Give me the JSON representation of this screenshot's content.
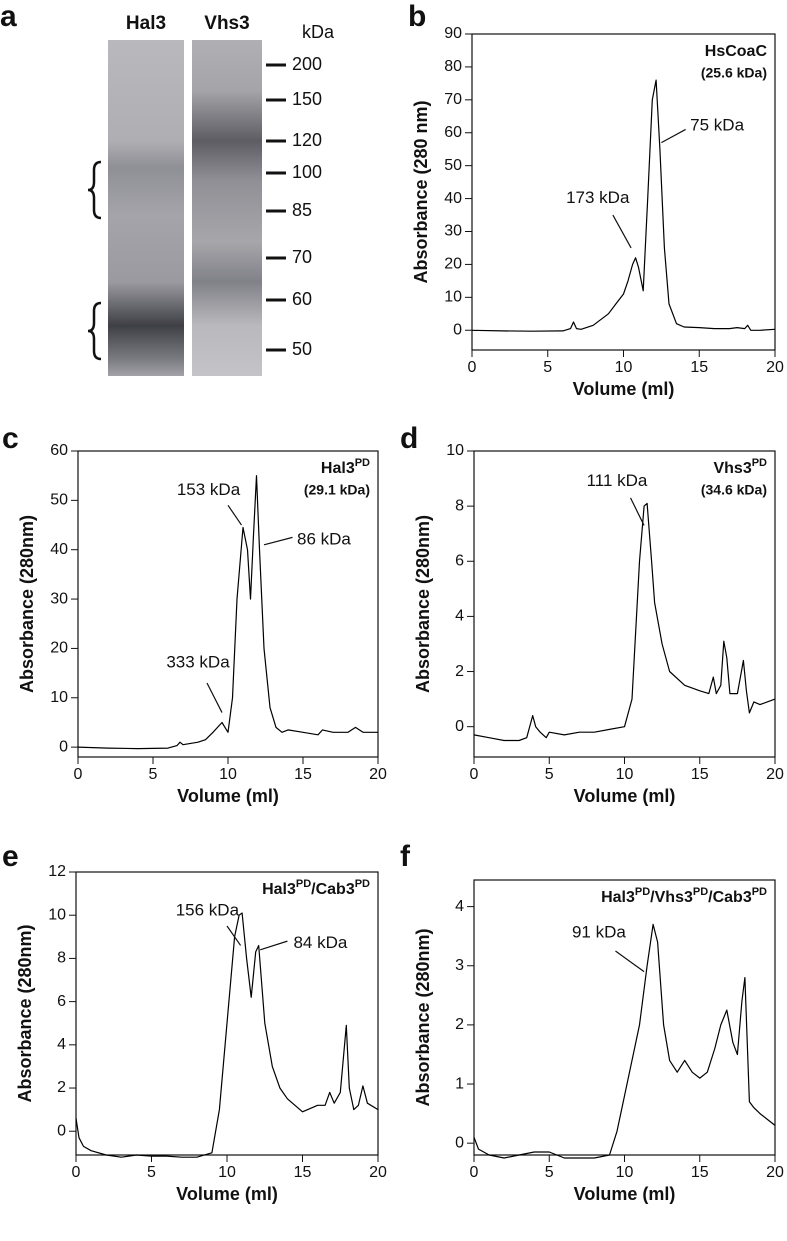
{
  "gel": {
    "panel": "a",
    "lanes": [
      "Hal3",
      "Vhs3"
    ],
    "unit": "kDa",
    "markers": [
      200,
      150,
      120,
      100,
      85,
      70,
      60,
      50
    ]
  },
  "chart_data": [
    {
      "type": "line",
      "panel": "b",
      "title": [
        "HsCoaC"
      ],
      "subtitle": "(25.6 kDa)",
      "x_label": "Volume (ml)",
      "y_label": "Absorbance (280 nm)",
      "xlim": [
        0,
        20
      ],
      "xticks": [
        0,
        5,
        10,
        15,
        20
      ],
      "ylim": [
        -6,
        90
      ],
      "yticks": [
        0,
        10,
        20,
        30,
        40,
        50,
        60,
        70,
        80,
        90
      ],
      "color": "#000000",
      "annotations": [
        "173 kDa",
        "75 kDa"
      ],
      "x": [
        0,
        2,
        4,
        6,
        6.5,
        6.7,
        6.9,
        7.2,
        8,
        9,
        9.5,
        10,
        10.3,
        10.6,
        10.8,
        11,
        11.3,
        11.6,
        11.9,
        12.15,
        12.4,
        12.7,
        13,
        13.5,
        14,
        15,
        16,
        17,
        17.5,
        18,
        18.2,
        18.4,
        19,
        20
      ],
      "values": [
        0,
        -0.2,
        -0.3,
        -0.2,
        0.5,
        2.5,
        0.5,
        0.3,
        1.5,
        5,
        8,
        11,
        15,
        20,
        22,
        19,
        12,
        40,
        70,
        76,
        55,
        25,
        8,
        2,
        1,
        0.8,
        0.5,
        0.5,
        0.8,
        0.5,
        1.5,
        0,
        0,
        0.3
      ]
    },
    {
      "type": "line",
      "panel": "c",
      "title": [
        "Hal3",
        "PD"
      ],
      "subtitle": "(29.1 kDa)",
      "x_label": "Volume (ml)",
      "y_label": "Absorbance (280nm)",
      "xlim": [
        0,
        20
      ],
      "xticks": [
        0,
        5,
        10,
        15,
        20
      ],
      "ylim": [
        -2,
        60
      ],
      "yticks": [
        0,
        10,
        20,
        30,
        40,
        50,
        60
      ],
      "color": "#000000",
      "annotations": [
        "333 kDa",
        "153 kDa",
        "86 kDa"
      ],
      "x": [
        0,
        2,
        4,
        6,
        6.6,
        6.8,
        7,
        8,
        8.5,
        9,
        9.3,
        9.6,
        9.8,
        10,
        10.3,
        10.6,
        11,
        11.3,
        11.5,
        11.7,
        11.9,
        12.1,
        12.4,
        12.8,
        13.2,
        13.6,
        14,
        15,
        16,
        16.3,
        17,
        18,
        18.5,
        19,
        20
      ],
      "values": [
        0,
        -0.2,
        -0.3,
        -0.2,
        0.3,
        1,
        0.5,
        1,
        1.5,
        3,
        4,
        5,
        4,
        3,
        10,
        30,
        44.5,
        40,
        30,
        43,
        55,
        40,
        20,
        8,
        4,
        3,
        3.5,
        3,
        2.5,
        3.5,
        3,
        3,
        4,
        3,
        3
      ]
    },
    {
      "type": "line",
      "panel": "d",
      "title": [
        "Vhs3",
        "PD"
      ],
      "subtitle": "(34.6 kDa)",
      "x_label": "Volume (ml)",
      "y_label": "Absorbance (280nm)",
      "xlim": [
        0,
        20
      ],
      "xticks": [
        0,
        5,
        10,
        15,
        20
      ],
      "ylim": [
        -1.1,
        10
      ],
      "yticks": [
        0,
        2,
        4,
        6,
        8,
        10
      ],
      "color": "#000000",
      "annotations": [
        "111 kDa"
      ],
      "x": [
        0,
        1,
        2,
        3,
        3.5,
        3.9,
        4.1,
        4.4,
        4.8,
        5,
        6,
        7,
        8,
        9,
        10,
        10.5,
        11,
        11.3,
        11.5,
        11.8,
        12,
        12.5,
        13,
        14,
        15,
        15.6,
        15.9,
        16.1,
        16.4,
        16.6,
        16.8,
        17,
        17.5,
        17.9,
        18.1,
        18.3,
        18.6,
        19,
        20
      ],
      "values": [
        -0.3,
        -0.4,
        -0.5,
        -0.5,
        -0.4,
        0.4,
        0,
        -0.2,
        -0.4,
        -0.2,
        -0.3,
        -0.2,
        -0.2,
        -0.1,
        0,
        1,
        6,
        8,
        8.1,
        6,
        4.5,
        3,
        2,
        1.5,
        1.3,
        1.2,
        1.8,
        1.2,
        1.5,
        3.1,
        2.5,
        1.2,
        1.2,
        2.4,
        1.3,
        0.5,
        0.9,
        0.8,
        1
      ]
    },
    {
      "type": "line",
      "panel": "e",
      "title": [
        "Hal3",
        "PD",
        "/Cab3",
        "PD"
      ],
      "x_label": "Volume (ml)",
      "y_label": "Absorbance (280nm)",
      "xlim": [
        0,
        20
      ],
      "xticks": [
        0,
        5,
        10,
        15,
        20
      ],
      "ylim": [
        -1.1,
        12
      ],
      "yticks": [
        0,
        2,
        4,
        6,
        8,
        10,
        12
      ],
      "color": "#000000",
      "annotations": [
        "156 kDa",
        "84 kDa"
      ],
      "x": [
        0,
        0.2,
        0.5,
        1,
        2,
        3,
        4,
        5,
        6,
        7,
        8,
        9,
        9.5,
        10,
        10.5,
        10.8,
        11,
        11.3,
        11.6,
        11.9,
        12.1,
        12.5,
        13,
        13.5,
        14,
        15,
        16,
        16.5,
        16.8,
        17.1,
        17.5,
        17.9,
        18.1,
        18.4,
        18.7,
        19,
        19.3,
        20
      ],
      "values": [
        0.6,
        -0.3,
        -0.7,
        -0.9,
        -1.1,
        -1.2,
        -1.1,
        -1.15,
        -1.15,
        -1.2,
        -1.2,
        -1,
        1,
        5,
        9,
        10,
        10.1,
        8,
        6.2,
        8.3,
        8.6,
        5,
        3,
        2,
        1.5,
        0.9,
        1.2,
        1.2,
        1.8,
        1.3,
        1.8,
        4.9,
        2,
        1,
        1.2,
        2.1,
        1.3,
        1
      ]
    },
    {
      "type": "line",
      "panel": "f",
      "title": [
        "Hal3",
        "PD",
        "/Vhs3",
        "PD",
        "/Cab3",
        "PD"
      ],
      "x_label": "Volume (ml)",
      "y_label": "Absorbance (280nm)",
      "xlim": [
        0,
        20
      ],
      "xticks": [
        0,
        5,
        10,
        15,
        20
      ],
      "ylim": [
        -0.2,
        4.45
      ],
      "yticks": [
        0,
        1,
        2,
        3,
        4
      ],
      "color": "#000000",
      "annotations": [
        "91 kDa"
      ],
      "x": [
        0,
        0.3,
        1,
        2,
        3,
        4,
        5,
        6,
        7,
        8,
        9,
        9.5,
        10,
        10.5,
        11,
        11.5,
        11.9,
        12.2,
        12.6,
        13,
        13.5,
        14,
        14.5,
        15,
        15.5,
        16,
        16.4,
        16.8,
        17.2,
        17.5,
        17.8,
        18,
        18.3,
        18.6,
        19,
        19.5,
        20
      ],
      "values": [
        0.1,
        -0.1,
        -0.2,
        -0.25,
        -0.2,
        -0.15,
        -0.15,
        -0.25,
        -0.25,
        -0.25,
        -0.2,
        0.2,
        0.8,
        1.4,
        2,
        3,
        3.7,
        3.4,
        2,
        1.4,
        1.2,
        1.4,
        1.2,
        1.1,
        1.2,
        1.6,
        2,
        2.25,
        1.7,
        1.5,
        2.4,
        2.8,
        0.7,
        0.6,
        0.5,
        0.4,
        0.3
      ]
    }
  ]
}
